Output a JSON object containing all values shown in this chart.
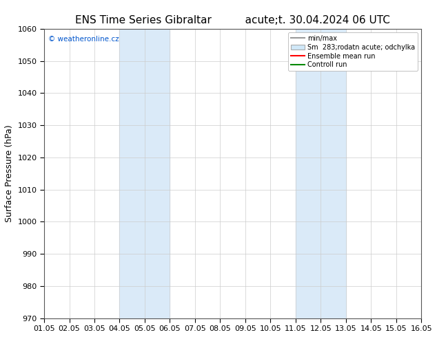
{
  "title_left": "ENS Time Series Gibraltar",
  "title_right": "acute;t. 30.04.2024 06 UTC",
  "ylabel": "Surface Pressure (hPa)",
  "ylim": [
    970,
    1060
  ],
  "yticks": [
    970,
    980,
    990,
    1000,
    1010,
    1020,
    1030,
    1040,
    1050,
    1060
  ],
  "xtick_labels": [
    "01.05",
    "02.05",
    "03.05",
    "04.05",
    "05.05",
    "06.05",
    "07.05",
    "08.05",
    "09.05",
    "10.05",
    "11.05",
    "12.05",
    "13.05",
    "14.05",
    "15.05",
    "16.05"
  ],
  "xlim": [
    0,
    15
  ],
  "shaded_bands": [
    {
      "xmin": 3.0,
      "xmax": 5.0,
      "color": "#daeaf8"
    },
    {
      "xmin": 10.0,
      "xmax": 12.0,
      "color": "#daeaf8"
    }
  ],
  "watermark": "© weatheronline.cz",
  "watermark_color": "#0055cc",
  "bg_color": "#ffffff",
  "plot_bg_color": "#ffffff",
  "grid_color": "#cccccc",
  "legend_entries": [
    {
      "label": "min/max",
      "color": "#999999",
      "style": "line"
    },
    {
      "label": "Sm  283;rodatn acute; odchylka",
      "color": "#d0e8f8",
      "style": "box"
    },
    {
      "label": "Ensemble mean run",
      "color": "#ff0000",
      "style": "line"
    },
    {
      "label": "Controll run",
      "color": "#008800",
      "style": "line"
    }
  ],
  "title_fontsize": 11,
  "axis_label_fontsize": 9,
  "tick_fontsize": 8
}
